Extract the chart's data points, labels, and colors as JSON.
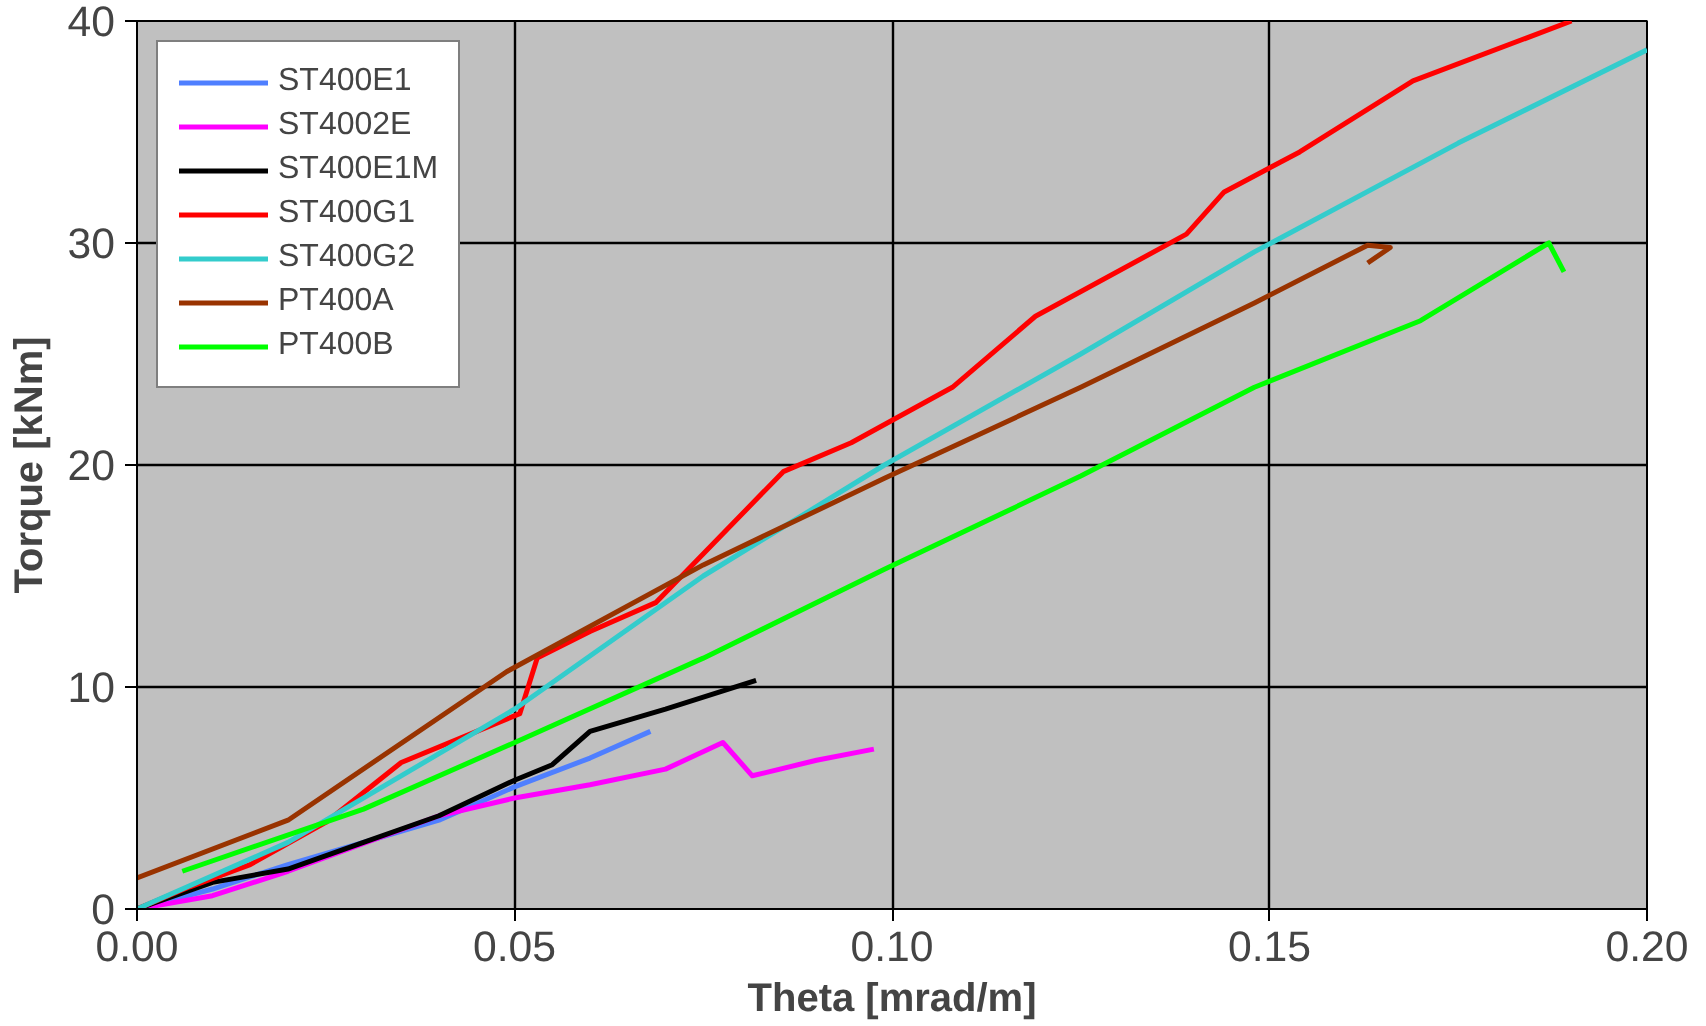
{
  "chart_data": {
    "type": "line",
    "xlabel": "Theta [mrad/m]",
    "ylabel": "Torque [kNm]",
    "xlim": [
      0,
      0.2
    ],
    "ylim": [
      0,
      40
    ],
    "xticks": [
      {
        "value": 0,
        "label": "0.00"
      },
      {
        "value": 0.05,
        "label": "0.05"
      },
      {
        "value": 0.1,
        "label": "0.10"
      },
      {
        "value": 0.15,
        "label": "0.15"
      },
      {
        "value": 0.2,
        "label": "0.20"
      }
    ],
    "yticks": [
      0,
      10,
      20,
      30,
      40
    ],
    "grid": true,
    "legend": "top left",
    "marker": "none",
    "line_style": "solid",
    "series": [
      {
        "name": "ST400E1",
        "color": "#4f7fff",
        "x": [
          0,
          0.01,
          0.02,
          0.04,
          0.05,
          0.06,
          0.068
        ],
        "values": [
          0,
          0.9,
          2,
          4,
          5.5,
          6.8,
          8
        ]
      },
      {
        "name": "ST4002E",
        "color": "#ff00ff",
        "x": [
          0,
          0.01,
          0.02,
          0.04,
          0.05,
          0.06,
          0.07,
          0.0776,
          0.0815,
          0.09,
          0.0976
        ],
        "values": [
          0,
          0.6,
          1.7,
          4.2,
          5,
          5.6,
          6.3,
          7.5,
          6,
          6.7,
          7.2
        ]
      },
      {
        "name": "ST400E1M",
        "color": "#000000",
        "x": [
          0,
          0.01,
          0.02,
          0.03,
          0.04,
          0.05,
          0.055,
          0.06,
          0.07,
          0.082
        ],
        "values": [
          0,
          1.2,
          1.8,
          3,
          4.2,
          5.8,
          6.5,
          8,
          9,
          10.3
        ]
      },
      {
        "name": "ST400G1",
        "color": "#ff0000",
        "x": [
          0,
          0.007,
          0.015,
          0.025,
          0.035,
          0.045,
          0.0507,
          0.053,
          0.06,
          0.0687,
          0.0856,
          0.0946,
          0.108,
          0.119,
          0.139,
          0.144,
          0.154,
          0.169,
          0.19
        ],
        "values": [
          0,
          1,
          2,
          3.9,
          6.6,
          8,
          8.8,
          11.3,
          12.5,
          13.8,
          19.7,
          21,
          23.5,
          26.7,
          30.4,
          32.3,
          34.1,
          37.3,
          40
        ]
      },
      {
        "name": "ST400G2",
        "color": "#33cccc",
        "x": [
          0,
          0.02,
          0.05,
          0.075,
          0.099,
          0.125,
          0.148,
          0.175,
          0.2
        ],
        "values": [
          0,
          3,
          9,
          15,
          20,
          25,
          29.6,
          34.5,
          38.7
        ]
      },
      {
        "name": "PT400A",
        "color": "#993300",
        "x": [
          0,
          0.02,
          0.049,
          0.075,
          0.099,
          0.125,
          0.148,
          0.163,
          0.166,
          0.163
        ],
        "values": [
          1.4,
          4,
          10.7,
          15.5,
          19.4,
          23.5,
          27.3,
          29.9,
          29.8,
          29.1
        ]
      },
      {
        "name": "PT400B",
        "color": "#00ff00",
        "x": [
          0.006,
          0.03,
          0.0507,
          0.075,
          0.099,
          0.125,
          0.148,
          0.17,
          0.187,
          0.189
        ],
        "values": [
          1.7,
          4.5,
          7.6,
          11.3,
          15.3,
          19.5,
          23.5,
          26.5,
          30,
          28.7
        ]
      }
    ]
  }
}
